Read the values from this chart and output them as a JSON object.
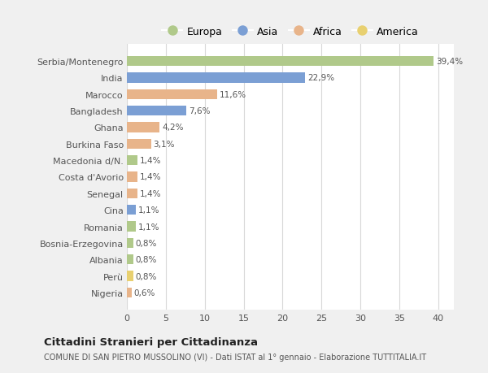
{
  "categories": [
    "Serbia/Montenegro",
    "India",
    "Marocco",
    "Bangladesh",
    "Ghana",
    "Burkina Faso",
    "Macedonia d/N.",
    "Costa d'Avorio",
    "Senegal",
    "Cina",
    "Romania",
    "Bosnia-Erzegovina",
    "Albania",
    "Perù",
    "Nigeria"
  ],
  "values": [
    39.4,
    22.9,
    11.6,
    7.6,
    4.2,
    3.1,
    1.4,
    1.4,
    1.4,
    1.1,
    1.1,
    0.8,
    0.8,
    0.8,
    0.6
  ],
  "labels": [
    "39,4%",
    "22,9%",
    "11,6%",
    "7,6%",
    "4,2%",
    "3,1%",
    "1,4%",
    "1,4%",
    "1,4%",
    "1,1%",
    "1,1%",
    "0,8%",
    "0,8%",
    "0,8%",
    "0,6%"
  ],
  "continents": [
    "Europa",
    "Asia",
    "Africa",
    "Asia",
    "Africa",
    "Africa",
    "Europa",
    "Africa",
    "Africa",
    "Asia",
    "Europa",
    "Europa",
    "Europa",
    "America",
    "Africa"
  ],
  "continent_colors": {
    "Europa": "#b0c98a",
    "Asia": "#7b9fd4",
    "Africa": "#e8b48a",
    "America": "#e8d070"
  },
  "legend_order": [
    "Europa",
    "Asia",
    "Africa",
    "America"
  ],
  "title": "Cittadini Stranieri per Cittadinanza",
  "subtitle": "COMUNE DI SAN PIETRO MUSSOLINO (VI) - Dati ISTAT al 1° gennaio - Elaborazione TUTTITALIA.IT",
  "xlim": [
    0,
    42
  ],
  "xticks": [
    0,
    5,
    10,
    15,
    20,
    25,
    30,
    35,
    40
  ],
  "fig_bg": "#f0f0f0",
  "plot_bg": "#ffffff"
}
